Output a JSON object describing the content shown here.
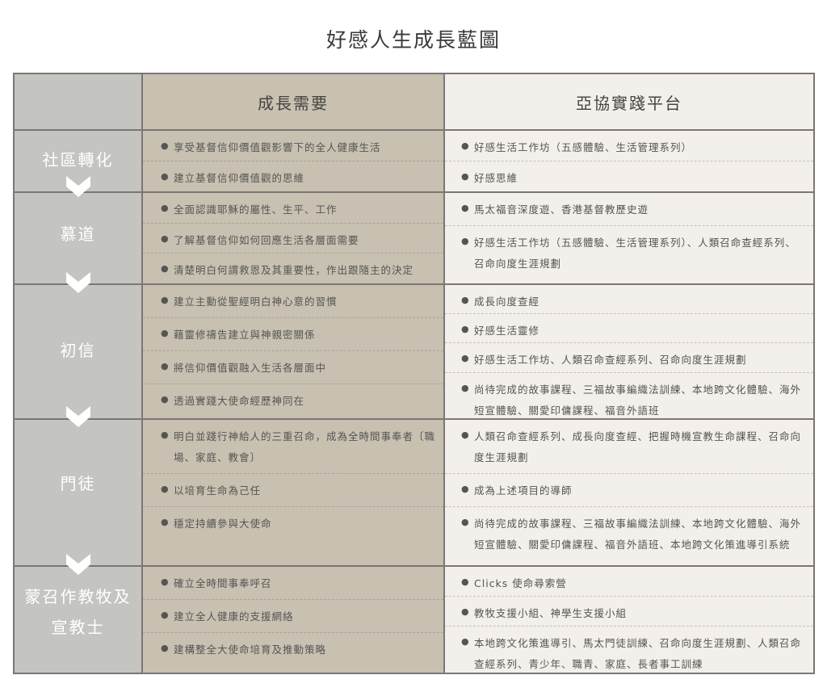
{
  "title": "好感人生成長藍圖",
  "headers": {
    "left": "",
    "mid": "成長需要",
    "right": "亞協實踐平台"
  },
  "colors": {
    "left_column": "#c4c4c0",
    "mid_column": "#c8c0b0",
    "right_column": "#f3efea",
    "border": "#7c7676"
  },
  "sections": [
    {
      "label": "社區轉化",
      "needs": [
        "享受基督信仰價值觀影響下的全人健康生活",
        "建立基督信仰價值觀的思維"
      ],
      "platforms": [
        "好感生活工作坊（五感體驗、生活管理系列）",
        "好感思維"
      ]
    },
    {
      "label": "慕道",
      "needs": [
        "全面認識耶穌的屬性、生平、工作",
        "了解基督信仰如何回應生活各層面需要",
        "清楚明白何謂救恩及其重要性，作出跟隨主的決定"
      ],
      "platforms": [
        "馬太福音深度遊、香港基督教歷史遊",
        "好感生活工作坊（五感體驗、生活管理系列）、人類召命查經系列、召命向度生涯規劃"
      ]
    },
    {
      "label": "初信",
      "needs": [
        "建立主動從聖經明白神心意的習慣",
        "藉靈修禱告建立與神親密關係",
        "將信仰價值觀融入生活各層面中",
        "透過實踐大使命經歷神同在"
      ],
      "platforms": [
        "成長向度查經",
        "好感生活靈修",
        "好感生活工作坊、人類召命查經系列、召命向度生涯規劃",
        "尚待完成的故事課程、三福故事編織法訓練、本地跨文化體驗、海外短宣體驗、關愛印傭課程、福音外語班"
      ]
    },
    {
      "label": "門徒",
      "needs": [
        "明白並踐行神給人的三重召命，成為全時間事奉者〔職場、家庭、教會〕",
        "以培育生命為己任",
        "穩定持續參與大使命"
      ],
      "platforms": [
        "人類召命查經系列、成長向度查經、把握時機宣教生命課程、召命向度生涯規劃",
        "成為上述項目的導師",
        "尚待完成的故事課程、三福故事編織法訓練、本地跨文化體驗、海外短宣體驗、關愛印傭課程、福音外語班、本地跨文化策進導引系統"
      ]
    },
    {
      "label": "蒙召作教牧及宣教士",
      "needs": [
        "確立全時間事奉呼召",
        "建立全人健康的支援網絡",
        "建構整全大使命培育及推動策略"
      ],
      "platforms": [
        "Clicks 使命尋索營",
        "教牧支援小組、神學生支援小組",
        "本地跨文化策進導引、馬太門徒訓練、召命向度生涯規劃、人類召命查經系列、青少年、職青、家庭、長者事工訓練"
      ]
    }
  ]
}
